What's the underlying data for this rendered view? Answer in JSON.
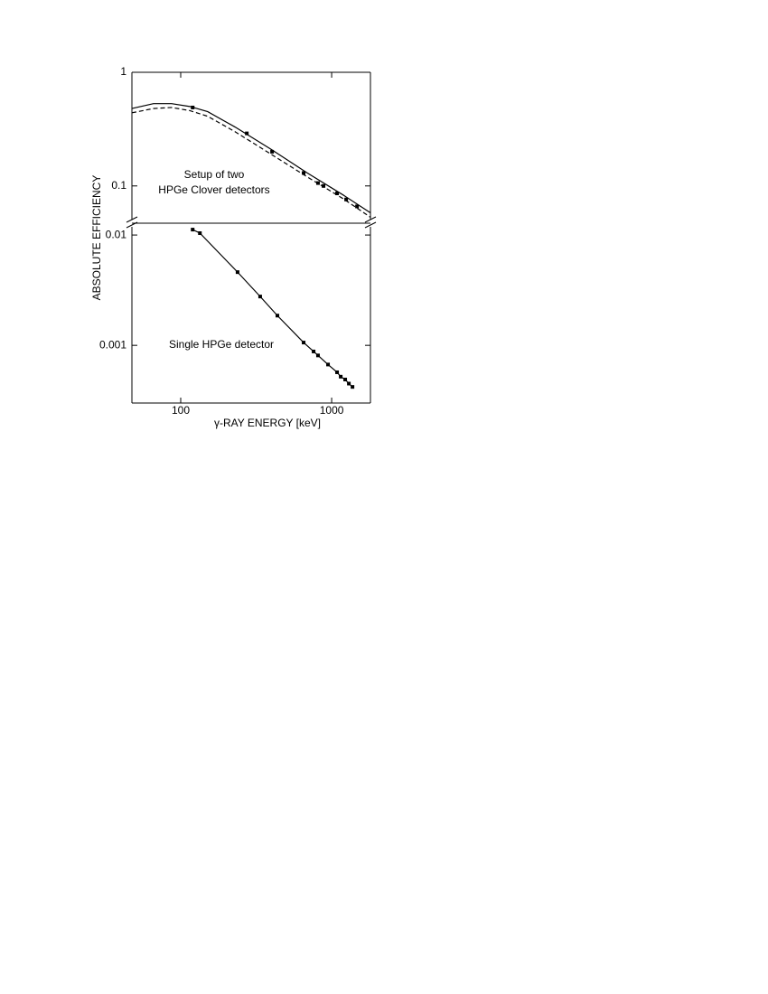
{
  "chart_data": [
    {
      "type": "line",
      "ylabel": "ABSOLUTE EFFICIENCY",
      "annotations": [
        "Setup of two",
        "HPGe Clover detectors"
      ],
      "log_x": true,
      "log_y": true,
      "xlim": [
        47.5,
        1807
      ],
      "ylim": [
        0.047,
        1
      ],
      "yticks": [
        0.1,
        1
      ],
      "series": [
        {
          "style": "solid",
          "color": "#000000",
          "x": [
            47.5,
            66,
            87,
            115,
            151,
            229,
            397,
            689,
            1196,
            1807
          ],
          "values": [
            0.48,
            0.53,
            0.53,
            0.5,
            0.45,
            0.33,
            0.21,
            0.13,
            0.083,
            0.058
          ]
        },
        {
          "style": "dashed",
          "color": "#000000",
          "x": [
            47.5,
            66,
            87,
            115,
            151,
            229,
            397,
            689,
            1196,
            1807
          ],
          "values": [
            0.44,
            0.48,
            0.49,
            0.46,
            0.41,
            0.3,
            0.19,
            0.12,
            0.077,
            0.053
          ]
        },
        {
          "style": "markers",
          "color": "#000000",
          "x": [
            120,
            274,
            403,
            652,
            812,
            883,
            1086,
            1247,
            1472
          ],
          "values": [
            0.49,
            0.29,
            0.2,
            0.13,
            0.106,
            0.1,
            0.086,
            0.076,
            0.066
          ]
        }
      ]
    },
    {
      "type": "line",
      "xlabel": "γ-RAY  ENERGY [keV]",
      "annotations": [
        "Single HPGe detector"
      ],
      "log_x": true,
      "log_y": true,
      "xlim": [
        47.5,
        1807
      ],
      "xticks": [
        100,
        1000
      ],
      "ylim": [
        0.0003,
        0.0128
      ],
      "yticks": [
        0.001,
        0.01
      ],
      "series": [
        {
          "style": "solid-markers",
          "color": "#000000",
          "x": [
            120,
            134,
            238,
            336,
            437,
            652,
            759,
            812,
            946,
            1086,
            1148,
            1229,
            1300,
            1374
          ],
          "values": [
            0.0112,
            0.0104,
            0.00461,
            0.00277,
            0.00186,
            0.00106,
            0.00088,
            0.00081,
            0.00067,
            0.00057,
            0.00052,
            0.00049,
            0.00045,
            0.00042
          ]
        }
      ]
    }
  ]
}
